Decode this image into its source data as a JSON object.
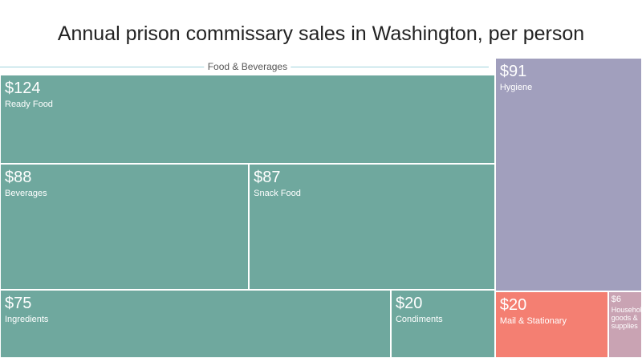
{
  "chart_data": {
    "type": "treemap",
    "title": "Annual prison commissary sales in Washington, per person",
    "group_label": "Food & Beverages",
    "categories": [
      "Ready Food",
      "Beverages",
      "Snack Food",
      "Ingredients",
      "Condiments",
      "Hygiene",
      "Mail & Stationary",
      "Household goods & supplies"
    ],
    "values": [
      124,
      88,
      87,
      75,
      20,
      91,
      20,
      6
    ],
    "value_labels": [
      "$124",
      "$88",
      "$87",
      "$75",
      "$20",
      "$91",
      "$20",
      "$6"
    ],
    "colors": [
      "#6fa89e",
      "#6fa89e",
      "#6fa89e",
      "#6fa89e",
      "#6fa89e",
      "#a19fbd",
      "#f47f72",
      "#c9a3b3"
    ]
  }
}
